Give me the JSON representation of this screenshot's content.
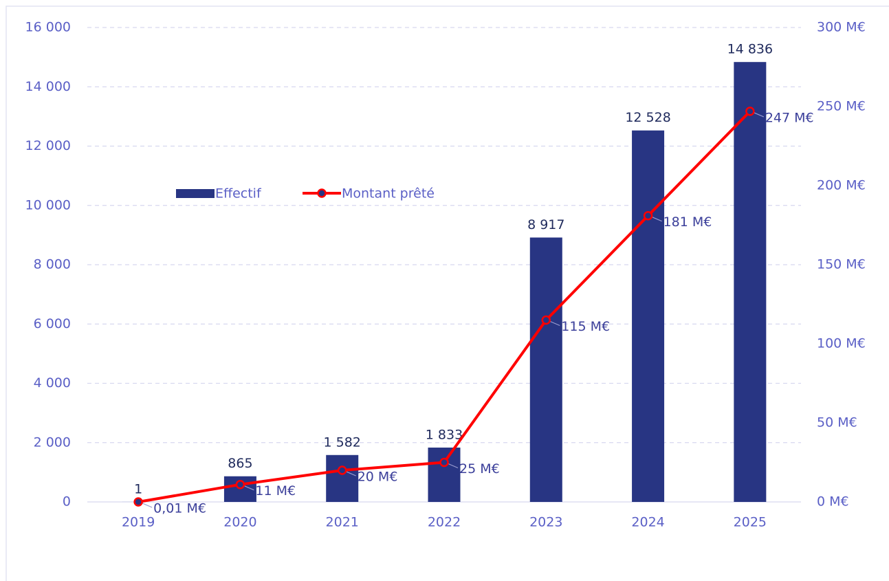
{
  "chart_data": {
    "type": "bar",
    "categories": [
      "2019",
      "2020",
      "2021",
      "2022",
      "2023",
      "2024",
      "2025"
    ],
    "series": [
      {
        "name": "Effectif",
        "type": "bar",
        "color": "#283583",
        "axis": "y",
        "values": [
          1,
          865,
          1582,
          1833,
          8917,
          12528,
          14836
        ],
        "value_labels": [
          "1",
          "865",
          "1 582",
          "1 833",
          "8 917",
          "12 528",
          "14 836"
        ]
      },
      {
        "name": "Montant prêté",
        "type": "line",
        "color": "#ff0000",
        "axis": "y2",
        "values": [
          0.01,
          11,
          20,
          25,
          115,
          181,
          247
        ],
        "value_labels": [
          "0,01 M€",
          "11 M€",
          "20 M€",
          "25 M€",
          "115 M€",
          "181 M€",
          "247 M€"
        ]
      }
    ],
    "ylim": [
      0,
      16000
    ],
    "yticks": [
      0,
      {
        "value": 2000,
        "label": "2 000"
      },
      {
        "value": 4000,
        "label": "4 000"
      },
      {
        "value": 6000,
        "label": "6 000"
      },
      {
        "value": 8000,
        "label": "8 000"
      },
      {
        "value": 10000,
        "label": "10 000"
      },
      {
        "value": 12000,
        "label": "12 000"
      },
      {
        "value": 14000,
        "label": "14 000"
      },
      {
        "value": 16000,
        "label": "16 000"
      }
    ],
    "y2lim": [
      0,
      300
    ],
    "y2ticks": [
      {
        "value": 0,
        "label": "0 M€"
      },
      {
        "value": 50,
        "label": "50 M€"
      },
      {
        "value": 100,
        "label": "100 M€"
      },
      {
        "value": 150,
        "label": "150 M€"
      },
      {
        "value": 200,
        "label": "200 M€"
      },
      {
        "value": 250,
        "label": "250 M€"
      },
      {
        "value": 300,
        "label": "300 M€"
      }
    ],
    "grid": true,
    "legend": true
  }
}
